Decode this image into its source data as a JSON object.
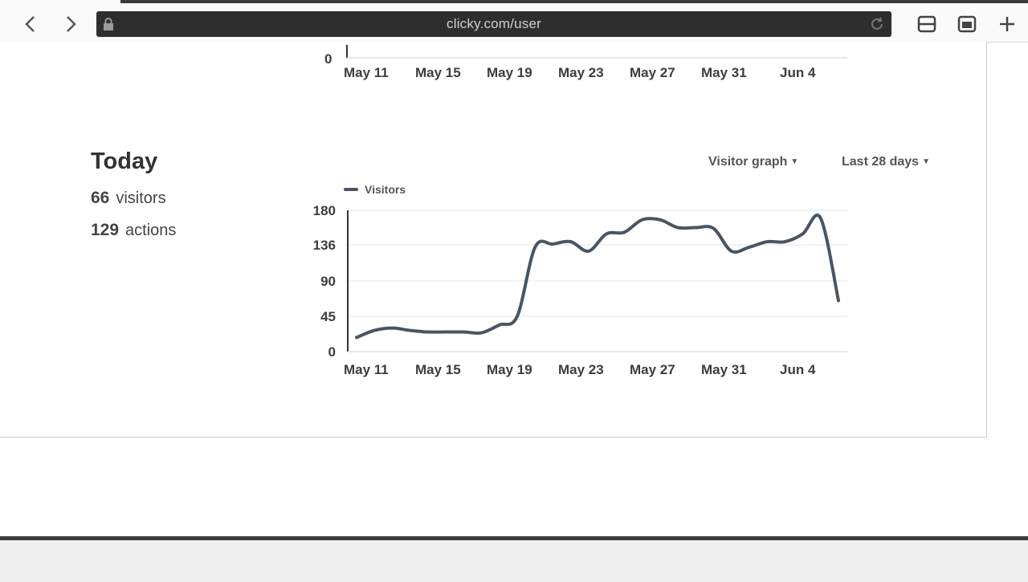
{
  "browser": {
    "url": "clicky.com/user",
    "icons": [
      "back-icon",
      "forward-icon",
      "lock-icon",
      "reload-icon",
      "tabs-icon",
      "bookmarks-icon",
      "new-tab-icon"
    ]
  },
  "top_chart_axis": {
    "y_zero": "0",
    "x_ticks": [
      "May 11",
      "May 15",
      "May 19",
      "May 23",
      "May 27",
      "May 31",
      "Jun 4"
    ]
  },
  "today": {
    "title": "Today",
    "visitors_count": "66",
    "visitors_label": "visitors",
    "actions_count": "129",
    "actions_label": "actions"
  },
  "controls": {
    "graph_type": "Visitor graph",
    "range": "Last 28 days"
  },
  "chart_data": {
    "type": "line",
    "title": "",
    "xlabel": "",
    "ylabel": "",
    "ylim": [
      0,
      180
    ],
    "y_ticks": [
      "0",
      "45",
      "90",
      "136",
      "180"
    ],
    "x_tick_labels": [
      "May 11",
      "May 15",
      "May 19",
      "May 23",
      "May 27",
      "May 31",
      "Jun 4"
    ],
    "legend": "top-left",
    "grid": true,
    "colors": {
      "line": "#4a5563"
    },
    "x": [
      "May 10",
      "May 11",
      "May 12",
      "May 13",
      "May 14",
      "May 15",
      "May 16",
      "May 17",
      "May 18",
      "May 19",
      "May 20",
      "May 21",
      "May 22",
      "May 23",
      "May 24",
      "May 25",
      "May 26",
      "May 27",
      "May 28",
      "May 29",
      "May 30",
      "May 31",
      "Jun 1",
      "Jun 2",
      "Jun 3",
      "Jun 4",
      "Jun 5",
      "Jun 6"
    ],
    "series": [
      {
        "name": "Visitors",
        "values": [
          18,
          27,
          30,
          27,
          25,
          25,
          25,
          24,
          34,
          45,
          133,
          137,
          140,
          128,
          150,
          152,
          168,
          168,
          158,
          158,
          157,
          128,
          133,
          140,
          140,
          150,
          170,
          65
        ]
      }
    ]
  }
}
